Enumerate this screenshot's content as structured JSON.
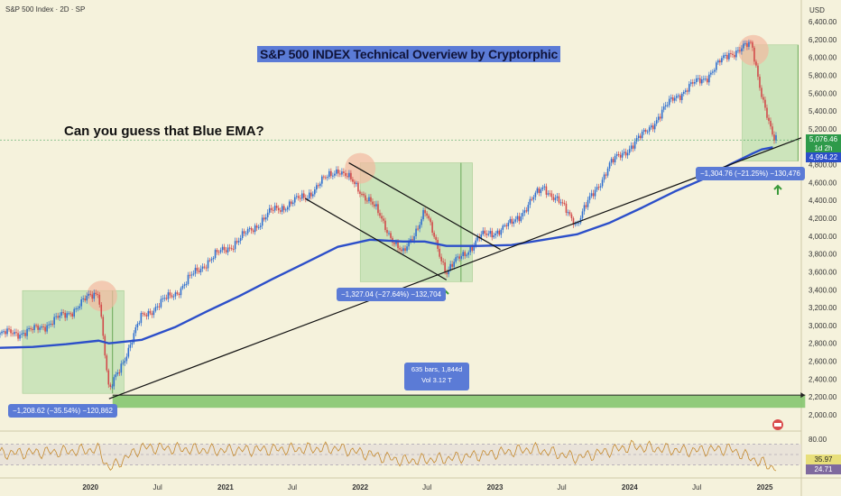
{
  "header": {
    "symbol": "S&P 500 Index · 2D · SP",
    "currency": "USD"
  },
  "annotations": {
    "title": "S&P 500 INDEX Technical Overview by Cryptorphic",
    "question": "Can you guess that Blue EMA?",
    "measure_2020": "−1,208.62 (−35.54%) −120,862",
    "measure_2022": "−1,327.04 (−27.64%) −132,704",
    "measure_2025": "−1,304.76 (−21.25%) −130,476",
    "range_bars": "635 bars, 1,844d",
    "range_vol": "Vol 3.12 T"
  },
  "price_tags": {
    "last": "5,076.46",
    "countdown": "1d 2h",
    "ema": "4,994.22",
    "rsi_a": "35.97",
    "rsi_b": "24.71"
  },
  "colors": {
    "background": "#f5f2dc",
    "ema": "#2c4fc9",
    "candle_up": "#2f6fd0",
    "candle_down": "#d24a4a",
    "rsi": "#c58a2e",
    "zone_fill": "#bfe0b0",
    "tag_blue": "#5b7bd6"
  },
  "chart_data": [
    {
      "type": "line",
      "name": "S&P 500 Index 2D price with EMA",
      "x": [
        "2019-05",
        "2019-08",
        "2019-11",
        "2020-02",
        "2020-03",
        "2020-06",
        "2020-09",
        "2020-12",
        "2021-03",
        "2021-06",
        "2021-09",
        "2021-12",
        "2022-03",
        "2022-06",
        "2022-08",
        "2022-10",
        "2023-01",
        "2023-04",
        "2023-07",
        "2023-10",
        "2024-01",
        "2024-04",
        "2024-07",
        "2024-10",
        "2024-12",
        "2025-02",
        "2025-03",
        "2025-04"
      ],
      "series": [
        {
          "name": "",
          "values": [
            2900,
            2940,
            3120,
            3390,
            2240,
            3100,
            3360,
            3720,
            3960,
            4280,
            4440,
            4760,
            4400,
            3780,
            4280,
            3600,
            3980,
            4130,
            4560,
            4150,
            4800,
            5120,
            5560,
            5800,
            6050,
            6140,
            5600,
            5076
          ]
        },
        {
          "name": "",
          "values": [
            2750,
            2760,
            2790,
            2830,
            2800,
            2840,
            2980,
            3160,
            3330,
            3520,
            3700,
            3880,
            3960,
            3940,
            3940,
            3890,
            3890,
            3900,
            3960,
            4020,
            4150,
            4320,
            4500,
            4660,
            4800,
            4920,
            4970,
            4994
          ]
        }
      ],
      "y_ticks": [
        2000,
        2200,
        2400,
        2600,
        2800,
        3000,
        3200,
        3400,
        3600,
        3800,
        4000,
        4200,
        4400,
        4600,
        4800,
        5000,
        5200,
        5400,
        5600,
        5800,
        6000,
        6200,
        6400
      ],
      "y_tick_labels": [
        "2,000.00",
        "2,200.00",
        "2,400.00",
        "2,600.00",
        "2,800.00",
        "3,000.00",
        "3,200.00",
        "3,400.00",
        "3,600.00",
        "3,800.00",
        "4,000.00",
        "4,200.00",
        "4,400.00",
        "4,600.00",
        "4,800.00",
        "5,000.00",
        "5,200.00",
        "5,400.00",
        "5,600.00",
        "5,800.00",
        "6,000.00",
        "6,200.00",
        "6,400.00"
      ],
      "x_tick_labels": [
        "2020",
        "Jul",
        "2021",
        "Jul",
        "2022",
        "Jul",
        "2023",
        "Jul",
        "2024",
        "Jul",
        "2025"
      ],
      "x_tick_dates": [
        "2020-01",
        "2020-07",
        "2021-01",
        "2021-07",
        "2022-01",
        "2022-07",
        "2023-01",
        "2023-07",
        "2024-01",
        "2024-07",
        "2025-01"
      ],
      "ylim": [
        1880,
        6480
      ],
      "grid": false,
      "drawdowns": [
        {
          "peak": 3390,
          "trough": 2240,
          "peak_date": "2020-02",
          "trough_date": "2020-03",
          "label_key": "measure_2020"
        },
        {
          "peak": 4820,
          "trough": 3490,
          "peak_date": "2022-01",
          "trough_date": "2022-10",
          "label_key": "measure_2022"
        },
        {
          "peak": 6140,
          "trough": 4840,
          "peak_date": "2024-12",
          "trough_date": "2025-04",
          "label_key": "measure_2025"
        }
      ],
      "trendlines": [
        {
          "from": [
            "2020-03",
            2180
          ],
          "to": [
            "2025-04",
            4980
          ]
        },
        {
          "from": [
            "2021-09",
            4420
          ],
          "to": [
            "2022-10",
            3510
          ]
        },
        {
          "from": [
            "2022-01",
            4820
          ],
          "to": [
            "2023-03",
            3850
          ]
        }
      ],
      "range_measure": {
        "from": "2020-03",
        "to": "2025-04",
        "level": 2200
      }
    },
    {
      "type": "line",
      "name": "RSI",
      "x": [
        "2019-05",
        "2019-11",
        "2020-02",
        "2020-03",
        "2020-06",
        "2021-01",
        "2021-06",
        "2021-12",
        "2022-06",
        "2022-10",
        "2023-06",
        "2023-10",
        "2024-03",
        "2024-08",
        "2024-12",
        "2025-03",
        "2025-04"
      ],
      "series": [
        {
          "name": "",
          "values": [
            52,
            56,
            60,
            22,
            64,
            58,
            60,
            62,
            38,
            42,
            61,
            44,
            66,
            57,
            61,
            34,
            25
          ]
        }
      ],
      "y_tick_labels": [
        "80.00"
      ],
      "reference_levels": [
        70,
        50,
        30
      ],
      "ylim": [
        15,
        85
      ]
    }
  ]
}
